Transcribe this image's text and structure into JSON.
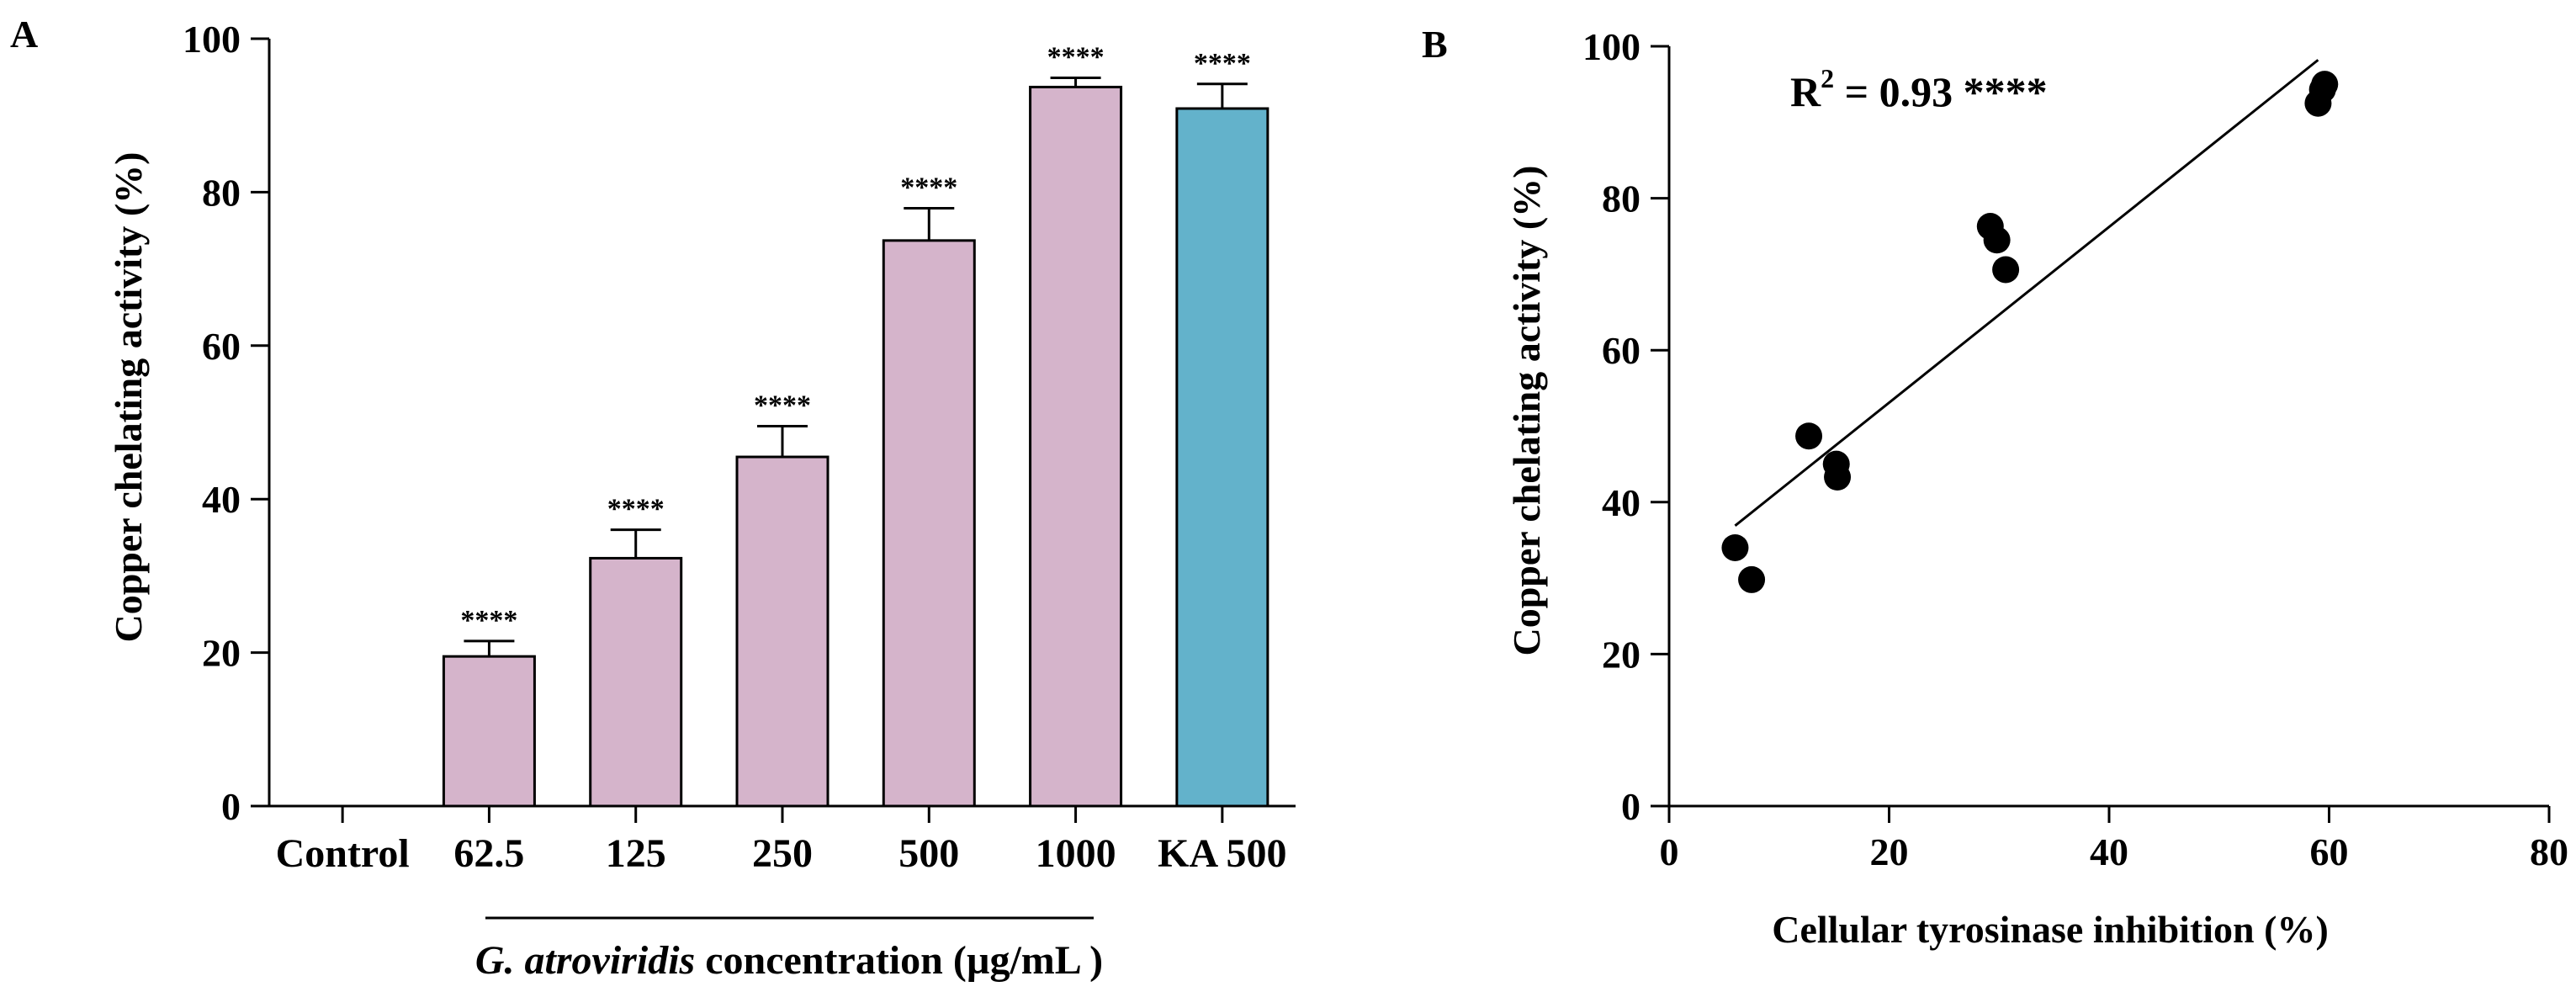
{
  "chart_data": [
    {
      "panel": "A",
      "type": "bar",
      "ylabel": "Copper chelating activity (%)",
      "ylim": [
        0,
        100
      ],
      "yticks": [
        0,
        20,
        40,
        60,
        80,
        100
      ],
      "categories": [
        "Control",
        "62.5",
        "125",
        "250",
        "500",
        "1000",
        "KA 500"
      ],
      "values": [
        0,
        19.5,
        32.3,
        45.5,
        73.7,
        93.7,
        90.9
      ],
      "errors": [
        0,
        2.0,
        3.7,
        4.0,
        4.2,
        1.2,
        3.2
      ],
      "significance": [
        "",
        "****",
        "****",
        "****",
        "****",
        "****",
        "****"
      ],
      "colors": [
        "#d5b4cb",
        "#d5b4cb",
        "#d5b4cb",
        "#d5b4cb",
        "#d5b4cb",
        "#d5b4cb",
        "#63b2cb"
      ],
      "group_label": {
        "italic": "G. atroviridis",
        "rest": " concentration (µg/mL )"
      }
    },
    {
      "panel": "B",
      "type": "scatter",
      "xlabel": "Cellular tyrosinase inhibition (%)",
      "ylabel": "Copper chelating activity (%)",
      "xlim": [
        0,
        80
      ],
      "ylim": [
        0,
        100
      ],
      "xticks": [
        0,
        20,
        40,
        60,
        80
      ],
      "yticks": [
        0,
        20,
        40,
        60,
        80,
        100
      ],
      "points": [
        [
          6.0,
          34.0
        ],
        [
          7.5,
          29.8
        ],
        [
          12.7,
          48.7
        ],
        [
          15.2,
          45.0
        ],
        [
          15.3,
          43.3
        ],
        [
          29.2,
          76.3
        ],
        [
          29.8,
          74.5
        ],
        [
          30.6,
          70.6
        ],
        [
          59.0,
          92.5
        ],
        [
          59.4,
          94.3
        ],
        [
          59.6,
          95.0
        ]
      ],
      "fit_line": {
        "x": [
          6.0,
          59.0
        ],
        "y": [
          36.9,
          98.2
        ]
      },
      "annotation": {
        "base": "R",
        "sup": "2",
        "rest": " = 0.93 ****"
      }
    }
  ]
}
